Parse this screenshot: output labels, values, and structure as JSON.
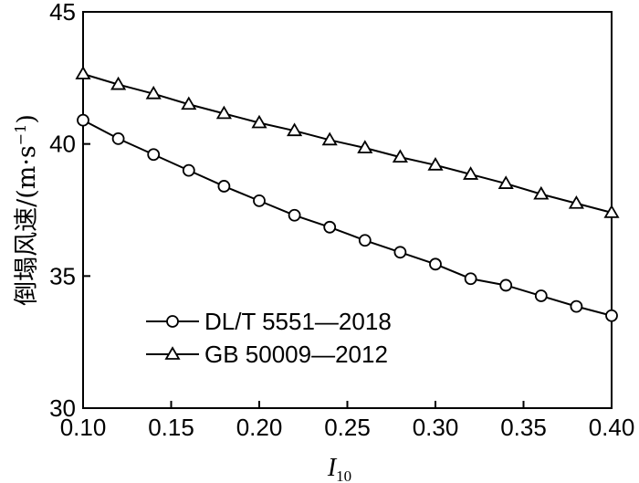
{
  "chart_data": {
    "type": "line",
    "xlabel": "I",
    "xlabel_subscript": "10",
    "ylabel_main": "倒塌风速/(m·s",
    "ylabel_sup": "−1",
    "ylabel_close": ")",
    "xlim": [
      0.1,
      0.4
    ],
    "ylim": [
      30,
      45
    ],
    "xticks": [
      "0.10",
      "0.15",
      "0.20",
      "0.25",
      "0.30",
      "0.35",
      "0.40"
    ],
    "yticks": [
      "30",
      "35",
      "40",
      "45"
    ],
    "grid": false,
    "legend_position": "lower-left",
    "x": [
      0.1,
      0.12,
      0.14,
      0.16,
      0.18,
      0.2,
      0.22,
      0.24,
      0.26,
      0.28,
      0.3,
      0.32,
      0.34,
      0.36,
      0.38,
      0.4
    ],
    "series": [
      {
        "name": "DL/T 5551—2018",
        "marker": "circle",
        "values": [
          40.9,
          40.2,
          39.6,
          39.0,
          38.4,
          37.85,
          37.3,
          36.85,
          36.35,
          35.9,
          35.45,
          34.9,
          34.65,
          34.25,
          33.85,
          33.5
        ]
      },
      {
        "name": "GB 50009—2012",
        "marker": "triangle",
        "values": [
          42.65,
          42.25,
          41.9,
          41.5,
          41.15,
          40.8,
          40.5,
          40.15,
          39.85,
          39.5,
          39.2,
          38.85,
          38.5,
          38.1,
          37.75,
          37.4
        ]
      }
    ]
  }
}
